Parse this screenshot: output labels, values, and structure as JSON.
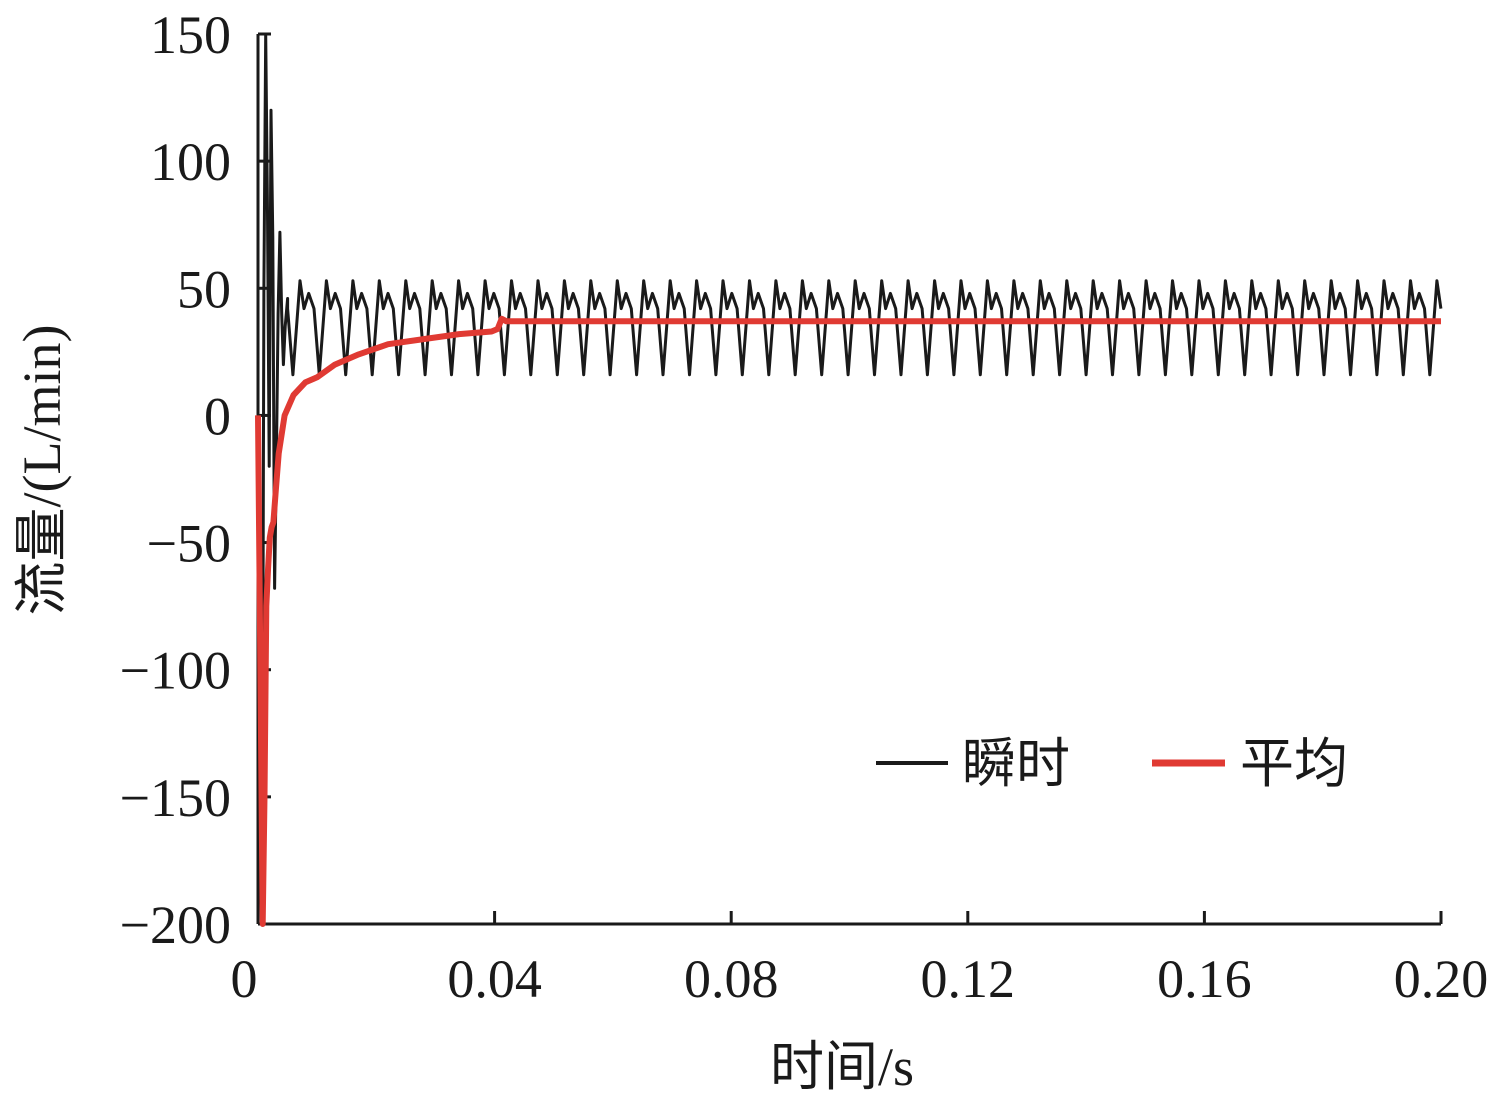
{
  "chart_data": {
    "type": "line",
    "title": "",
    "xlabel": "时间/s",
    "ylabel": "流量/(L/min)",
    "xlim": [
      0,
      0.2
    ],
    "ylim": [
      -200,
      150
    ],
    "x_ticks": [
      0,
      0.04,
      0.08,
      0.12,
      0.16,
      0.2
    ],
    "x_tick_labels": [
      "0",
      "0.04",
      "0.08",
      "0.12",
      "0.16",
      "0.20"
    ],
    "y_ticks": [
      -200,
      -150,
      -100,
      -50,
      0,
      50,
      100,
      150
    ],
    "y_tick_labels": [
      "−200",
      "−150",
      "−100",
      "−50",
      "0",
      "50",
      "100",
      "150"
    ],
    "grid": false,
    "legend_position": "lower-right",
    "series": [
      {
        "name": "瞬时",
        "color": "#1a1a1a",
        "startup": [
          [
            0.0,
            0
          ],
          [
            0.0004,
            -80
          ],
          [
            0.0007,
            -200
          ],
          [
            0.001,
            50
          ],
          [
            0.0013,
            150
          ],
          [
            0.0016,
            80
          ],
          [
            0.0019,
            -20
          ],
          [
            0.0022,
            120
          ],
          [
            0.0025,
            70
          ],
          [
            0.0028,
            -68
          ],
          [
            0.0031,
            -20
          ],
          [
            0.0034,
            40
          ],
          [
            0.0037,
            72
          ],
          [
            0.004,
            40
          ],
          [
            0.0043,
            20
          ],
          [
            0.0046,
            35
          ],
          [
            0.005,
            46
          ]
        ],
        "steady": {
          "period": 0.00447,
          "min": 16,
          "primary_peak": 53,
          "secondary_peak": 48,
          "shoulder": 42,
          "start": 0.005,
          "end": 0.2
        }
      },
      {
        "name": "平均",
        "color": "#e03a33",
        "points": [
          [
            0.0,
            0
          ],
          [
            0.0004,
            -100
          ],
          [
            0.0008,
            -200
          ],
          [
            0.0011,
            -150
          ],
          [
            0.0014,
            -75
          ],
          [
            0.0017,
            -60
          ],
          [
            0.002,
            -48
          ],
          [
            0.0023,
            -44
          ],
          [
            0.0026,
            -42
          ],
          [
            0.003,
            -30
          ],
          [
            0.0035,
            -15
          ],
          [
            0.0045,
            0
          ],
          [
            0.006,
            8
          ],
          [
            0.008,
            13
          ],
          [
            0.01,
            15
          ],
          [
            0.013,
            20
          ],
          [
            0.017,
            24
          ],
          [
            0.022,
            28
          ],
          [
            0.028,
            30
          ],
          [
            0.034,
            32
          ],
          [
            0.0395,
            33
          ],
          [
            0.0405,
            34
          ],
          [
            0.0412,
            38
          ],
          [
            0.042,
            37
          ],
          [
            0.2,
            37
          ]
        ]
      }
    ]
  }
}
